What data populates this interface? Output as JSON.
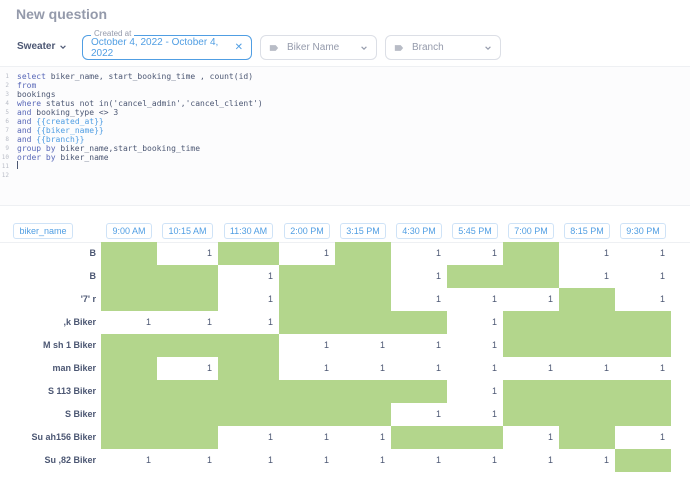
{
  "app": {
    "title": "New question"
  },
  "filters": {
    "database": "Sweater",
    "created_at": {
      "label": "Created at",
      "value": "October 4, 2022 - October 4, 2022"
    },
    "biker_name": {
      "placeholder": "Biker Name"
    },
    "branch": {
      "placeholder": "Branch"
    }
  },
  "editor": {
    "line_numbers": [
      "1",
      "2",
      "3",
      "4",
      "5",
      "6",
      "7",
      "8",
      "9",
      "10",
      "11",
      "12"
    ],
    "lines": [
      "select biker_name, start_booking_time , count(id)",
      "from",
      "bookings",
      "where status not in('cancel_admin','cancel_client')",
      "and booking_type <> 3",
      "and {{created_at}}",
      "and {{biker_name}}",
      "and {{branch}}",
      "group by biker_name,start_booking_time",
      "order by biker_name",
      "",
      ""
    ]
  },
  "table": {
    "row_header": "biker_name",
    "columns": [
      "9:00 AM",
      "10:15 AM",
      "11:30 AM",
      "2:00 PM",
      "3:15 PM",
      "4:30 PM",
      "5:45 PM",
      "7:00 PM",
      "8:15 PM",
      "9:30 PM"
    ],
    "rows": [
      {
        "name": "B  ",
        "cells": [
          "",
          "1",
          "",
          "1",
          "",
          "1",
          "1",
          "",
          "1",
          "1"
        ]
      },
      {
        "name": "B",
        "cells": [
          "",
          "",
          "1",
          "",
          "",
          "1",
          "",
          "",
          "1",
          "1"
        ]
      },
      {
        "name": "'7'  r",
        "cells": [
          "",
          "",
          "1",
          "",
          "",
          "1",
          "1",
          "1",
          "",
          "1"
        ]
      },
      {
        "name": "  ,k   Biker",
        "cells": [
          "1",
          "1",
          "1",
          "",
          "",
          "",
          "1",
          "",
          "",
          ""
        ]
      },
      {
        "name": "M    sh 1   Biker",
        "cells": [
          "",
          "",
          "",
          "1",
          "1",
          "1",
          "1",
          "",
          "",
          ""
        ]
      },
      {
        "name": "    man   Biker",
        "cells": [
          "",
          "1",
          "",
          "1",
          "1",
          "1",
          "1",
          "1",
          "1",
          "1"
        ]
      },
      {
        "name": "S    113 Biker",
        "cells": [
          "",
          "",
          "",
          "",
          "",
          "",
          "1",
          "",
          "",
          ""
        ]
      },
      {
        "name": "S    Biker",
        "cells": [
          "",
          "",
          "",
          "",
          "",
          "1",
          "1",
          "",
          "",
          ""
        ]
      },
      {
        "name": "Su    ah156 Biker",
        "cells": [
          "",
          "",
          "1",
          "1",
          "1",
          "",
          "",
          "1",
          "",
          "1"
        ]
      },
      {
        "name": "Su   ,82 Biker",
        "cells": [
          "1",
          "1",
          "1",
          "1",
          "1",
          "1",
          "1",
          "1",
          "1",
          ""
        ]
      }
    ],
    "highlight": [
      [
        1,
        0,
        1,
        0,
        1,
        0,
        0,
        1,
        0,
        0
      ],
      [
        1,
        1,
        0,
        1,
        1,
        0,
        1,
        1,
        0,
        0
      ],
      [
        1,
        1,
        0,
        1,
        1,
        0,
        0,
        0,
        1,
        0
      ],
      [
        0,
        0,
        0,
        1,
        1,
        1,
        0,
        1,
        1,
        1
      ],
      [
        1,
        1,
        1,
        0,
        0,
        0,
        0,
        1,
        1,
        1
      ],
      [
        1,
        0,
        1,
        0,
        0,
        0,
        0,
        0,
        0,
        0
      ],
      [
        1,
        1,
        1,
        1,
        1,
        1,
        0,
        1,
        1,
        1
      ],
      [
        1,
        1,
        1,
        1,
        1,
        0,
        0,
        1,
        1,
        1
      ],
      [
        1,
        1,
        0,
        0,
        0,
        1,
        1,
        0,
        1,
        0
      ],
      [
        0,
        0,
        0,
        0,
        0,
        0,
        0,
        0,
        0,
        1
      ]
    ]
  },
  "colors": {
    "accent": "#509ee3",
    "highlight": "#b3d68c",
    "text": "#4c5773"
  }
}
